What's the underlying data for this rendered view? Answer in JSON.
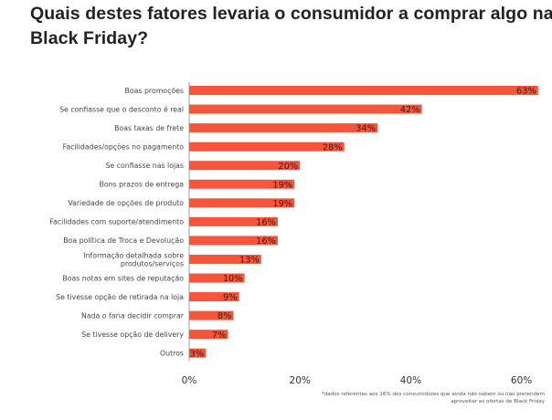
{
  "title": "Quais destes fatores levaria o consumidor a comprar algo na Black Friday?",
  "footnote": "*dados referentes aos 26% dos consumidores que ainda não sabem ou não pretendem aproveitar as ofertas de Black Friday",
  "colors": {
    "bar": "#f5553a",
    "axis": "#888888"
  },
  "chart_data": {
    "type": "bar",
    "orientation": "horizontal",
    "categories": [
      "Boas promoções",
      "Se confiasse que o desconto é real",
      "Boas taxas de frete",
      "Facilidades/opções no pagamento",
      "Se confiasse nas lojas",
      "Bons prazos de entrega",
      "Variedade de opções de produto",
      "Facilidades com suporte/atendimento",
      "Boa política de Troca e Devolução",
      "Informação detalhada sobre produtos/serviços",
      "Boas notas em sites de reputação",
      "Se tivesse opção de retirada na loja",
      "Nada o faria decidir comprar",
      "Se tivesse opção de delivery",
      "Outros"
    ],
    "category_lines": [
      [
        "Boas promoções"
      ],
      [
        "Se confiasse que o desconto é real"
      ],
      [
        "Boas taxas de frete"
      ],
      [
        "Facilidades/opções no pagamento"
      ],
      [
        "Se confiasse nas lojas"
      ],
      [
        "Bons prazos de entrega"
      ],
      [
        "Variedade de opções de produto"
      ],
      [
        "Facilidades com suporte/atendimento"
      ],
      [
        "Boa política de Troca e Devolução"
      ],
      [
        "Informação detalhada sobre",
        "produtos/serviços"
      ],
      [
        "Boas notas em sites de reputação"
      ],
      [
        "Se tivesse opção de retirada na loja"
      ],
      [
        "Nada o faria decidir comprar"
      ],
      [
        "Se tivesse opção de delivery"
      ],
      [
        "Outros"
      ]
    ],
    "values": [
      63,
      42,
      34,
      28,
      20,
      19,
      19,
      16,
      16,
      13,
      10,
      9,
      8,
      7,
      3
    ],
    "value_labels": [
      "63%",
      "42%",
      "34%",
      "28%",
      "20%",
      "19%",
      "19%",
      "16%",
      "16%",
      "13%",
      "10%",
      "9%",
      "8%",
      "7%",
      "3%"
    ],
    "xticks": [
      0,
      20,
      40,
      60
    ],
    "xtick_labels": [
      "0%",
      "20%",
      "40%",
      "60%"
    ],
    "xlim": [
      0,
      63
    ],
    "grid": false,
    "legend": "none"
  }
}
